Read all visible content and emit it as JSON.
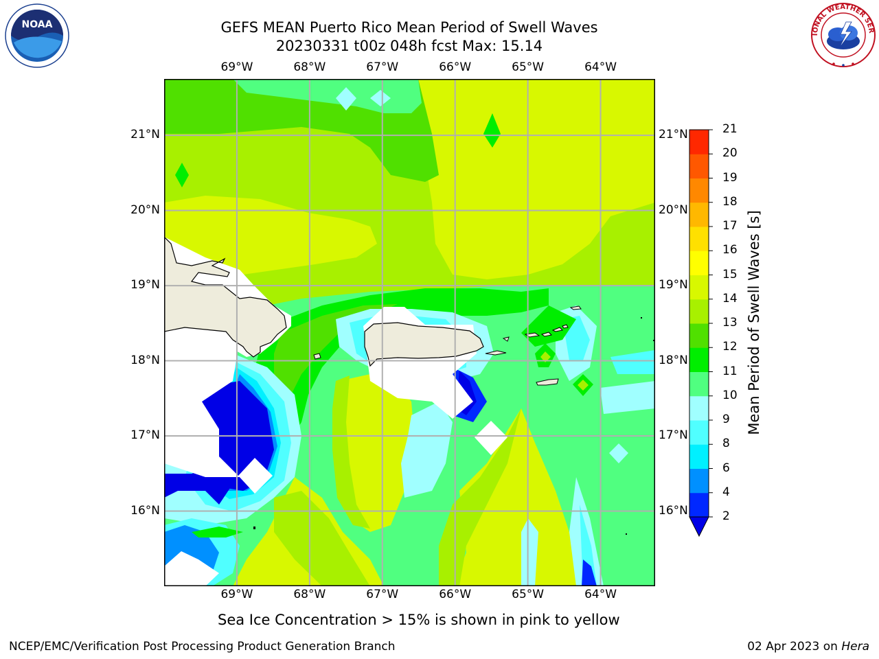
{
  "title": {
    "line1": "GEFS MEAN Puerto Rico Mean Period of Swell Waves",
    "line2": "20230331 t00z 048h fcst   Max: 15.14"
  },
  "map": {
    "lon_range": [
      -70.0,
      -63.25
    ],
    "lat_range": [
      15.0,
      21.75
    ],
    "lon_ticks": [
      {
        "value": -69,
        "label": "69°W"
      },
      {
        "value": -68,
        "label": "68°W"
      },
      {
        "value": -67,
        "label": "67°W"
      },
      {
        "value": -66,
        "label": "66°W"
      },
      {
        "value": -65,
        "label": "65°W"
      },
      {
        "value": -64,
        "label": "64°W"
      }
    ],
    "lat_ticks": [
      {
        "value": 21,
        "label": "21°N"
      },
      {
        "value": 20,
        "label": "20°N"
      },
      {
        "value": 19,
        "label": "19°N"
      },
      {
        "value": 18,
        "label": "18°N"
      },
      {
        "value": 17,
        "label": "17°N"
      },
      {
        "value": 16,
        "label": "16°N"
      }
    ],
    "gridlines": true,
    "land_color": "#eeecdc",
    "coast_color": "#000000",
    "grid_color": "#b0b0b0"
  },
  "colorbar": {
    "label": "Mean Period of Swell Waves [s]",
    "levels": [
      2,
      4,
      6,
      8,
      9,
      10,
      11,
      12,
      13,
      14,
      15,
      16,
      17,
      18,
      19,
      20,
      21
    ],
    "tick_labels": [
      "2",
      "4",
      "6",
      "8",
      "9",
      "10",
      "11",
      "12",
      "13",
      "14",
      "15",
      "16",
      "17",
      "18",
      "19",
      "20",
      "21"
    ],
    "colors": [
      "#0028ff",
      "#0090ff",
      "#00f0ff",
      "#50ffff",
      "#a0ffff",
      "#50ff80",
      "#00ee00",
      "#50e000",
      "#a8f000",
      "#d8f800",
      "#ffff00",
      "#ffe000",
      "#ffb800",
      "#ff8800",
      "#ff5800",
      "#ff2800",
      "#ff0000"
    ],
    "under_color": "#0000e6",
    "extend": "min"
  },
  "ice_note": "Sea Ice Concentration > 15% is shown in pink to yellow",
  "footer": {
    "left": "NCEP/EMC/Verification Post Processing Product Generation Branch",
    "right_date": "02 Apr 2023 on ",
    "right_machine": "Hera"
  },
  "logos": {
    "left_icon": "noaa-logo",
    "left_text": "NOAA",
    "right_icon": "nws-logo",
    "right_text": "NATIONAL WEATHER SERVICE"
  }
}
